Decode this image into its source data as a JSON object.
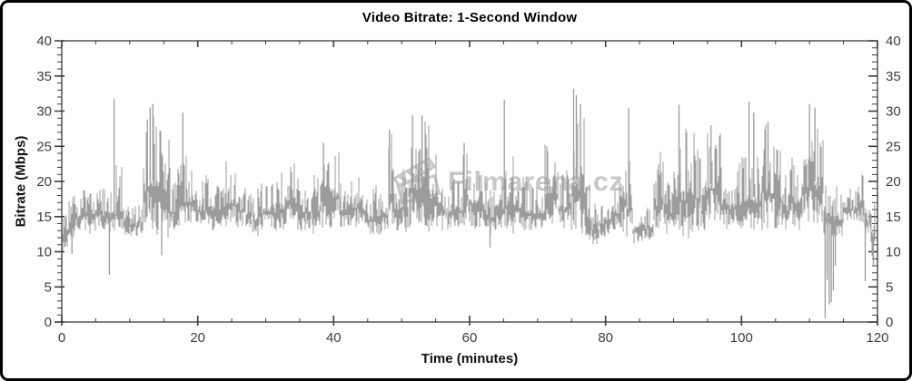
{
  "window": {
    "background": "#ffffff",
    "border_color": "#000000"
  },
  "watermark": {
    "text": "Filmarena.cz",
    "icon": "clapperboard-icon",
    "color": "#c7c7c7"
  },
  "chart_data": {
    "type": "line",
    "title": "Video Bitrate: 1-Second Window",
    "xlabel": "Time (minutes)",
    "ylabel": "Bitrate (Mbps)",
    "xlim": [
      0,
      120
    ],
    "ylim": [
      0,
      40
    ],
    "x_major_ticks": [
      0,
      20,
      40,
      60,
      80,
      100,
      120
    ],
    "x_minor_step": 5,
    "y_major_ticks": [
      0,
      5,
      10,
      15,
      20,
      25,
      30,
      35,
      40
    ],
    "y_minor_step": 1,
    "grid": false,
    "legend": "none",
    "axes_mirrored": true,
    "line_color": "#9c9c9c",
    "axis_color": "#3a3a3a",
    "series_name": "video bitrate (1-second window)",
    "typical_level_mbps": 16,
    "envelope_minutes": {
      "t_start": 0,
      "t_step": 1,
      "lo": [
        10,
        12,
        13,
        13,
        12.5,
        13,
        13,
        12,
        12,
        11.5,
        12,
        12,
        13,
        13,
        12,
        11.5,
        13,
        13,
        13,
        13.5,
        13.5,
        13,
        13,
        12.5,
        13,
        13,
        13.5,
        13,
        12,
        13,
        13.5,
        13,
        13,
        13.5,
        13,
        12.5,
        13,
        12.3,
        13,
        13,
        13.5,
        13,
        13,
        13.5,
        13,
        12,
        11.9,
        12.3,
        13,
        13,
        12.5,
        13,
        13,
        12.5,
        13,
        12.5,
        13,
        13,
        13,
        13,
        13,
        13,
        12.5,
        12,
        13,
        13,
        12.5,
        13,
        13,
        13,
        13,
        14,
        14,
        13,
        13,
        13,
        12.5,
        11.5,
        11,
        12,
        12.5,
        13,
        12.5,
        11.5,
        11,
        11.5,
        11.5,
        12.5,
        12.5,
        13,
        12.5,
        11.5,
        11.5,
        12.5,
        13,
        14,
        14,
        13,
        13,
        13,
        13,
        13,
        13,
        13,
        13,
        13,
        13,
        13,
        13,
        13.5,
        14,
        14,
        11,
        11,
        12,
        14,
        14,
        14,
        12,
        9
      ],
      "hi": [
        17,
        18,
        18,
        19,
        18.5,
        20.5,
        19,
        20,
        22.5,
        17.5,
        17,
        18,
        29,
        31,
        30,
        27,
        20,
        26,
        24,
        22,
        20,
        21,
        20,
        21,
        23,
        23.5,
        20,
        19.5,
        19,
        20,
        19.5,
        20,
        21.5,
        22.5,
        23.5,
        21,
        20.5,
        21,
        25.5,
        23,
        25.2,
        20,
        22,
        21,
        20,
        19,
        19.5,
        20,
        27.4,
        21,
        23.5,
        29.5,
        29.6,
        29.4,
        26,
        25,
        20,
        20.5,
        21,
        25.5,
        24,
        21,
        20,
        19,
        21,
        23,
        24,
        21,
        20,
        19.5,
        20,
        25.5,
        26,
        21,
        22,
        31,
        29,
        20,
        17,
        17.5,
        18,
        20,
        24.6,
        24,
        16.5,
        16,
        17,
        24,
        24.6,
        20,
        27,
        28,
        26,
        27,
        21,
        28,
        27.5,
        22,
        21.5,
        23,
        24,
        25,
        24,
        28.5,
        28,
        24.6,
        21,
        24.6,
        21,
        29,
        29,
        28,
        21,
        20,
        19,
        19,
        19.5,
        21,
        18,
        17
      ]
    },
    "spikes": [
      [
        7.7,
        31.8
      ],
      [
        12.6,
        28.8
      ],
      [
        13.0,
        30.5
      ],
      [
        13.4,
        31.0
      ],
      [
        17.8,
        29.8
      ],
      [
        38.5,
        25.5
      ],
      [
        48.2,
        27.4
      ],
      [
        51.6,
        29.4
      ],
      [
        53.0,
        29.4
      ],
      [
        59.2,
        25.5
      ],
      [
        65.1,
        31.6
      ],
      [
        75.3,
        33.2
      ],
      [
        75.7,
        32.3
      ],
      [
        76.3,
        31.0
      ],
      [
        83.4,
        30.4
      ],
      [
        90.8,
        30.9
      ],
      [
        95.5,
        28.0
      ],
      [
        101.1,
        31.3
      ],
      [
        101.8,
        29.8
      ],
      [
        103.9,
        28.5
      ],
      [
        110.0,
        31.0
      ],
      [
        110.8,
        30.5
      ]
    ],
    "dips": [
      [
        1.5,
        9.7
      ],
      [
        7.0,
        6.7
      ],
      [
        14.7,
        9.5
      ],
      [
        63.0,
        10.6
      ],
      [
        112.3,
        0.5
      ],
      [
        112.6,
        6.0
      ],
      [
        112.9,
        2.5
      ],
      [
        113.2,
        2.8
      ],
      [
        113.5,
        4.5
      ],
      [
        113.8,
        8.0
      ],
      [
        118.2,
        5.8
      ],
      [
        119.4,
        8.0
      ]
    ]
  }
}
